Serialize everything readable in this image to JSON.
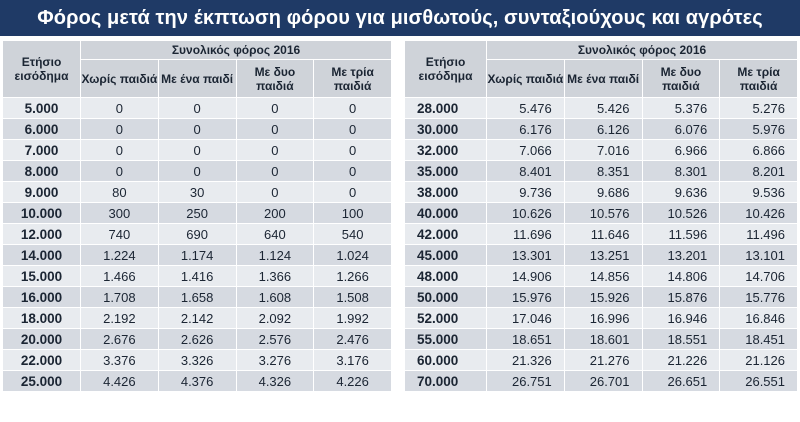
{
  "title": "Φόρος μετά την έκπτωση φόρου για μισθωτούς, συνταξιούχους και αγρότες",
  "headers": {
    "income": "Ετήσιο εισόδημα",
    "group": "Συνολικός φόρος 2016",
    "cols": [
      "Χωρίς παιδιά",
      "Με ένα παιδί",
      "Με δυο παιδιά",
      "Με τρία παιδιά"
    ]
  },
  "left_rows": [
    {
      "income": "5.000",
      "v": [
        "0",
        "0",
        "0",
        "0"
      ]
    },
    {
      "income": "6.000",
      "v": [
        "0",
        "0",
        "0",
        "0"
      ]
    },
    {
      "income": "7.000",
      "v": [
        "0",
        "0",
        "0",
        "0"
      ]
    },
    {
      "income": "8.000",
      "v": [
        "0",
        "0",
        "0",
        "0"
      ]
    },
    {
      "income": "9.000",
      "v": [
        "80",
        "30",
        "0",
        "0"
      ]
    },
    {
      "income": "10.000",
      "v": [
        "300",
        "250",
        "200",
        "100"
      ]
    },
    {
      "income": "12.000",
      "v": [
        "740",
        "690",
        "640",
        "540"
      ]
    },
    {
      "income": "14.000",
      "v": [
        "1.224",
        "1.174",
        "1.124",
        "1.024"
      ]
    },
    {
      "income": "15.000",
      "v": [
        "1.466",
        "1.416",
        "1.366",
        "1.266"
      ]
    },
    {
      "income": "16.000",
      "v": [
        "1.708",
        "1.658",
        "1.608",
        "1.508"
      ]
    },
    {
      "income": "18.000",
      "v": [
        "2.192",
        "2.142",
        "2.092",
        "1.992"
      ]
    },
    {
      "income": "20.000",
      "v": [
        "2.676",
        "2.626",
        "2.576",
        "2.476"
      ]
    },
    {
      "income": "22.000",
      "v": [
        "3.376",
        "3.326",
        "3.276",
        "3.176"
      ]
    },
    {
      "income": "25.000",
      "v": [
        "4.426",
        "4.376",
        "4.326",
        "4.226"
      ]
    }
  ],
  "right_rows": [
    {
      "income": "28.000",
      "v": [
        "5.476",
        "5.426",
        "5.376",
        "5.276"
      ]
    },
    {
      "income": "30.000",
      "v": [
        "6.176",
        "6.126",
        "6.076",
        "5.976"
      ]
    },
    {
      "income": "32.000",
      "v": [
        "7.066",
        "7.016",
        "6.966",
        "6.866"
      ]
    },
    {
      "income": "35.000",
      "v": [
        "8.401",
        "8.351",
        "8.301",
        "8.201"
      ]
    },
    {
      "income": "38.000",
      "v": [
        "9.736",
        "9.686",
        "9.636",
        "9.536"
      ]
    },
    {
      "income": "40.000",
      "v": [
        "10.626",
        "10.576",
        "10.526",
        "10.426"
      ]
    },
    {
      "income": "42.000",
      "v": [
        "11.696",
        "11.646",
        "11.596",
        "11.496"
      ]
    },
    {
      "income": "45.000",
      "v": [
        "13.301",
        "13.251",
        "13.201",
        "13.101"
      ]
    },
    {
      "income": "48.000",
      "v": [
        "14.906",
        "14.856",
        "14.806",
        "14.706"
      ]
    },
    {
      "income": "50.000",
      "v": [
        "15.976",
        "15.926",
        "15.876",
        "15.776"
      ]
    },
    {
      "income": "52.000",
      "v": [
        "17.046",
        "16.996",
        "16.946",
        "16.846"
      ]
    },
    {
      "income": "55.000",
      "v": [
        "18.651",
        "18.601",
        "18.551",
        "18.451"
      ]
    },
    {
      "income": "60.000",
      "v": [
        "21.326",
        "21.276",
        "21.226",
        "21.126"
      ]
    },
    {
      "income": "70.000",
      "v": [
        "26.751",
        "26.701",
        "26.651",
        "26.551"
      ]
    }
  ]
}
